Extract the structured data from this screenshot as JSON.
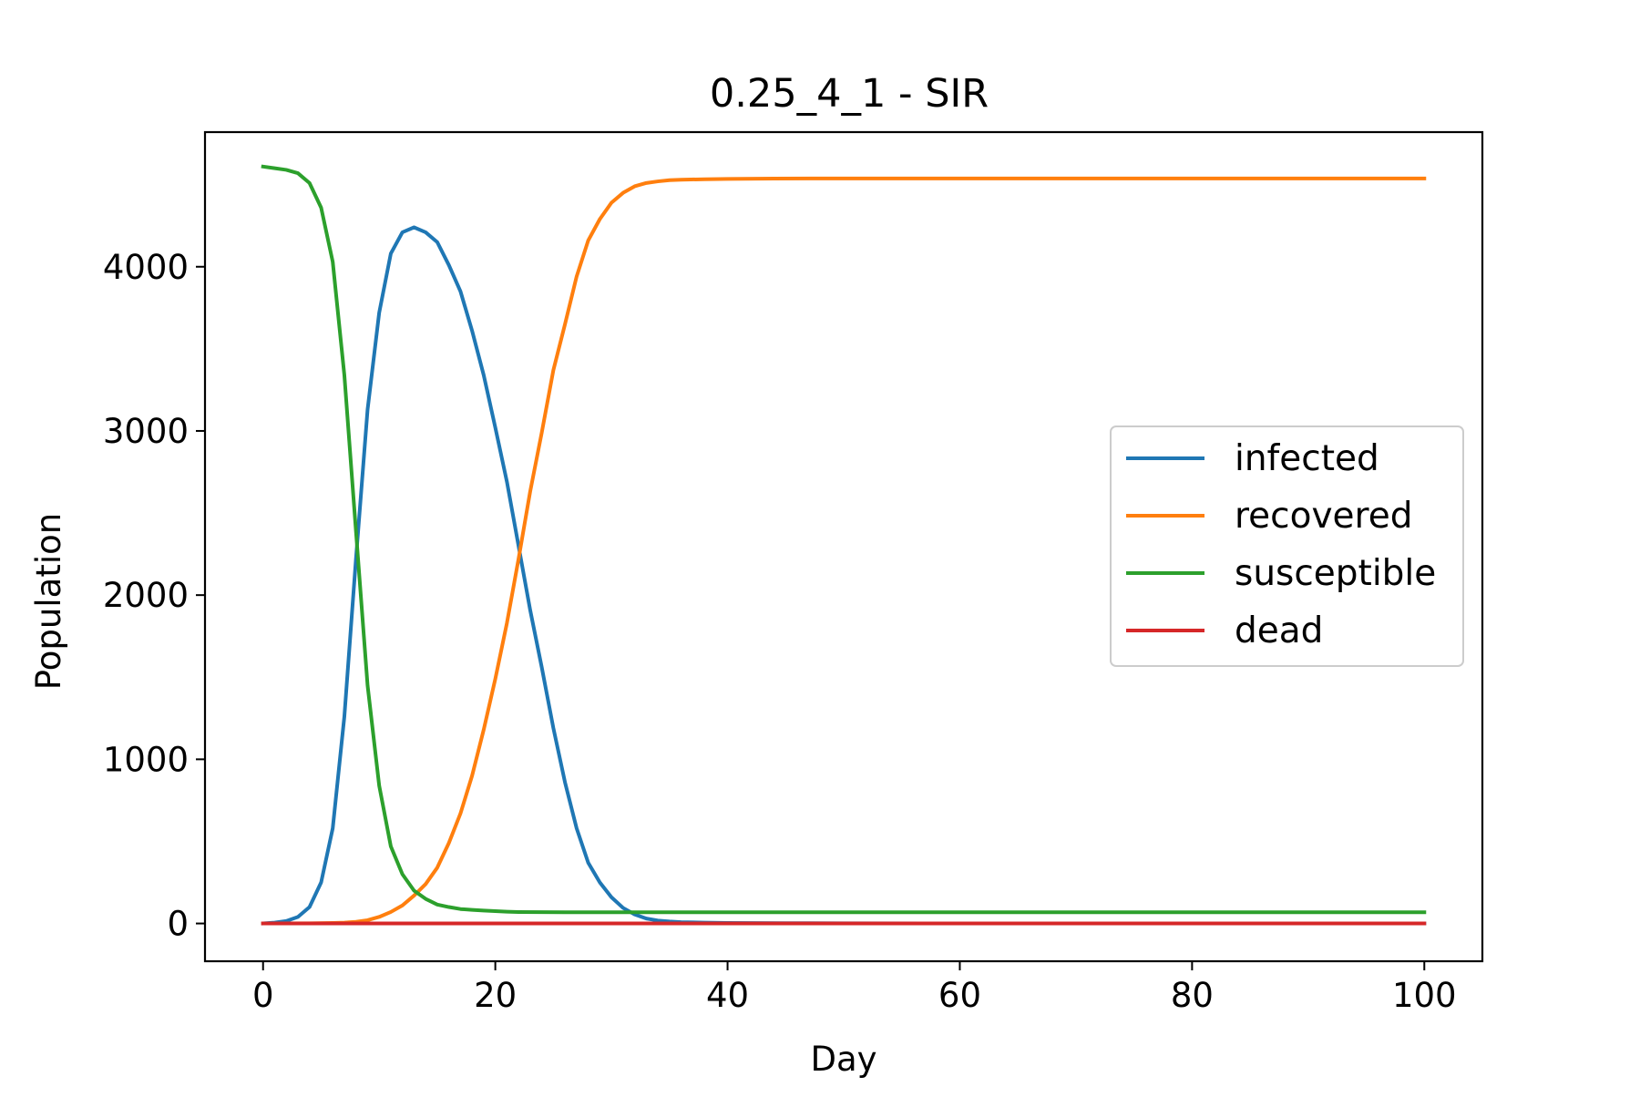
{
  "chart_data": {
    "type": "line",
    "title": "0.25_4_1 - SIR",
    "xlabel": "Day",
    "ylabel": "Population",
    "xlim": [
      -5,
      105
    ],
    "ylim": [
      -230,
      4820
    ],
    "xticks": [
      0,
      20,
      40,
      60,
      80,
      100
    ],
    "yticks": [
      0,
      1000,
      2000,
      3000,
      4000
    ],
    "grid": false,
    "legend": "center-right",
    "series": [
      {
        "name": "infected",
        "color": "#1f77b4",
        "points": [
          [
            0,
            0
          ],
          [
            1,
            5
          ],
          [
            2,
            15
          ],
          [
            3,
            40
          ],
          [
            4,
            100
          ],
          [
            5,
            250
          ],
          [
            6,
            580
          ],
          [
            7,
            1260
          ],
          [
            8,
            2220
          ],
          [
            9,
            3130
          ],
          [
            10,
            3720
          ],
          [
            11,
            4080
          ],
          [
            12,
            4210
          ],
          [
            13,
            4240
          ],
          [
            14,
            4210
          ],
          [
            15,
            4150
          ],
          [
            16,
            4010
          ],
          [
            17,
            3850
          ],
          [
            18,
            3610
          ],
          [
            19,
            3340
          ],
          [
            20,
            3020
          ],
          [
            21,
            2690
          ],
          [
            22,
            2300
          ],
          [
            23,
            1910
          ],
          [
            24,
            1560
          ],
          [
            25,
            1190
          ],
          [
            26,
            860
          ],
          [
            27,
            580
          ],
          [
            28,
            370
          ],
          [
            29,
            250
          ],
          [
            30,
            160
          ],
          [
            31,
            95
          ],
          [
            32,
            55
          ],
          [
            33,
            30
          ],
          [
            34,
            18
          ],
          [
            35,
            12
          ],
          [
            36,
            8
          ],
          [
            38,
            5
          ],
          [
            40,
            3
          ],
          [
            45,
            2
          ],
          [
            50,
            1
          ],
          [
            60,
            0
          ],
          [
            100,
            0
          ]
        ]
      },
      {
        "name": "recovered",
        "color": "#ff7f0e",
        "points": [
          [
            0,
            0
          ],
          [
            4,
            1
          ],
          [
            6,
            3
          ],
          [
            7,
            5
          ],
          [
            8,
            10
          ],
          [
            9,
            20
          ],
          [
            10,
            40
          ],
          [
            11,
            70
          ],
          [
            12,
            110
          ],
          [
            13,
            170
          ],
          [
            14,
            240
          ],
          [
            15,
            340
          ],
          [
            16,
            490
          ],
          [
            17,
            670
          ],
          [
            18,
            900
          ],
          [
            19,
            1180
          ],
          [
            20,
            1490
          ],
          [
            21,
            1830
          ],
          [
            22,
            2220
          ],
          [
            23,
            2630
          ],
          [
            24,
            2990
          ],
          [
            25,
            3370
          ],
          [
            26,
            3650
          ],
          [
            27,
            3940
          ],
          [
            28,
            4160
          ],
          [
            29,
            4290
          ],
          [
            30,
            4390
          ],
          [
            31,
            4450
          ],
          [
            32,
            4490
          ],
          [
            33,
            4510
          ],
          [
            34,
            4520
          ],
          [
            35,
            4527
          ],
          [
            36,
            4530
          ],
          [
            38,
            4533
          ],
          [
            40,
            4535
          ],
          [
            44,
            4537
          ],
          [
            50,
            4538
          ],
          [
            100,
            4538
          ]
        ]
      },
      {
        "name": "susceptible",
        "color": "#2ca02c",
        "points": [
          [
            0,
            4610
          ],
          [
            1,
            4600
          ],
          [
            2,
            4590
          ],
          [
            3,
            4570
          ],
          [
            4,
            4510
          ],
          [
            5,
            4360
          ],
          [
            6,
            4030
          ],
          [
            7,
            3340
          ],
          [
            8,
            2390
          ],
          [
            9,
            1450
          ],
          [
            10,
            840
          ],
          [
            11,
            470
          ],
          [
            12,
            300
          ],
          [
            13,
            200
          ],
          [
            14,
            150
          ],
          [
            15,
            115
          ],
          [
            16,
            100
          ],
          [
            17,
            88
          ],
          [
            18,
            83
          ],
          [
            19,
            79
          ],
          [
            20,
            75
          ],
          [
            21,
            72
          ],
          [
            22,
            70
          ],
          [
            24,
            69
          ],
          [
            26,
            68
          ],
          [
            30,
            68
          ],
          [
            40,
            68
          ],
          [
            100,
            68
          ]
        ]
      },
      {
        "name": "dead",
        "color": "#d62728",
        "points": [
          [
            0,
            0
          ],
          [
            100,
            0
          ]
        ]
      }
    ]
  }
}
